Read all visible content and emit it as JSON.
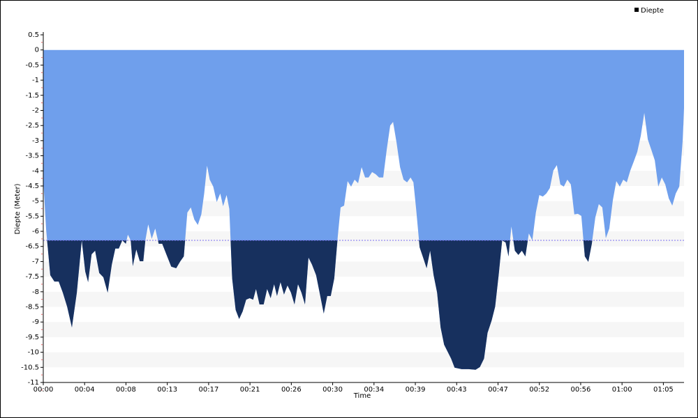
{
  "chart_data": {
    "type": "area",
    "xlabel": "Time",
    "ylabel": "Diepte (Meter)",
    "x": [
      0,
      18,
      44,
      70,
      97,
      123,
      150,
      180,
      211,
      242,
      264,
      282,
      304,
      326,
      352,
      378,
      405,
      431,
      453,
      475,
      497,
      519,
      532,
      550,
      563,
      585,
      607,
      629,
      642,
      660,
      682,
      704,
      726,
      748,
      774,
      805,
      836,
      862,
      884,
      906,
      928,
      950,
      972,
      994,
      1012,
      1030,
      1047,
      1069,
      1091,
      1113,
      1131,
      1153,
      1170,
      1188,
      1210,
      1232,
      1254,
      1276,
      1298,
      1320,
      1338,
      1360,
      1386,
      1408,
      1430,
      1452,
      1470,
      1492,
      1514,
      1536,
      1558,
      1580,
      1602,
      1624,
      1646,
      1668,
      1690,
      1716,
      1738,
      1764,
      1786,
      1808,
      1830,
      1852,
      1870,
      1892,
      1914,
      1936,
      1958,
      1980,
      2002,
      2024,
      2046,
      2068,
      2090,
      2112,
      2138,
      2160,
      2182,
      2200,
      2222,
      2244,
      2266,
      2288,
      2310,
      2328,
      2345,
      2367,
      2389,
      2411,
      2433,
      2455,
      2477,
      2499,
      2521,
      2543,
      2565,
      2587,
      2631,
      2675,
      2719,
      2746,
      2772,
      2794,
      2820,
      2842,
      2864,
      2886,
      2908,
      2926,
      2944,
      2966,
      2988,
      3010,
      3032,
      3054,
      3076,
      3098,
      3120,
      3142,
      3164,
      3186,
      3208,
      3230,
      3252,
      3274,
      3296,
      3318,
      3340,
      3362,
      3384,
      3406,
      3428,
      3450,
      3472,
      3494,
      3516,
      3538,
      3560,
      3582,
      3604,
      3626,
      3648,
      3670,
      3692,
      3714,
      3736,
      3758,
      3780,
      3802,
      3824,
      3846,
      3868,
      3890,
      3912,
      3934,
      3956,
      3978,
      4000,
      4022,
      4030
    ],
    "series": [
      {
        "name": "Diepte",
        "color": "#6f9fec",
        "below_color": "#17305e",
        "values": [
          -4.29,
          -5.95,
          -7.45,
          -7.66,
          -7.66,
          -8.03,
          -8.49,
          -9.18,
          -8.03,
          -6.3,
          -7.33,
          -7.68,
          -6.76,
          -6.64,
          -7.38,
          -7.52,
          -8.03,
          -7.1,
          -6.57,
          -6.57,
          -6.3,
          -6.41,
          -6.11,
          -6.3,
          -7.15,
          -6.6,
          -6.99,
          -6.99,
          -6.3,
          -5.77,
          -6.25,
          -5.91,
          -6.41,
          -6.41,
          -6.76,
          -7.17,
          -7.22,
          -6.99,
          -6.83,
          -5.38,
          -5.21,
          -5.61,
          -5.79,
          -5.44,
          -4.75,
          -3.83,
          -4.29,
          -4.52,
          -5.03,
          -4.75,
          -5.17,
          -4.8,
          -5.26,
          -7.56,
          -8.6,
          -8.9,
          -8.65,
          -8.26,
          -8.21,
          -8.26,
          -7.91,
          -8.42,
          -8.42,
          -7.91,
          -8.21,
          -7.75,
          -8.14,
          -7.68,
          -8.09,
          -7.79,
          -8.03,
          -8.42,
          -7.75,
          -8.03,
          -8.42,
          -6.87,
          -7.1,
          -7.45,
          -8.03,
          -8.72,
          -8.14,
          -8.14,
          -7.56,
          -6.18,
          -5.21,
          -5.15,
          -4.34,
          -4.52,
          -4.29,
          -4.41,
          -3.88,
          -4.22,
          -4.22,
          -4.04,
          -4.11,
          -4.22,
          -4.22,
          -3.3,
          -2.5,
          -2.38,
          -3.07,
          -3.88,
          -4.29,
          -4.38,
          -4.22,
          -4.38,
          -5.26,
          -6.53,
          -6.87,
          -7.22,
          -6.64,
          -7.45,
          -8.03,
          -9.18,
          -9.75,
          -9.98,
          -10.21,
          -10.51,
          -10.56,
          -10.56,
          -10.58,
          -10.49,
          -10.21,
          -9.36,
          -8.95,
          -8.49,
          -7.45,
          -6.3,
          -6.37,
          -6.83,
          -5.84,
          -6.64,
          -6.78,
          -6.64,
          -6.83,
          -6.07,
          -6.3,
          -5.38,
          -4.8,
          -4.85,
          -4.75,
          -4.57,
          -3.99,
          -3.81,
          -4.45,
          -4.52,
          -4.29,
          -4.45,
          -5.44,
          -5.42,
          -5.49,
          -6.83,
          -7.01,
          -6.41,
          -5.54,
          -5.1,
          -5.21,
          -6.23,
          -5.91,
          -4.98,
          -4.34,
          -4.52,
          -4.29,
          -4.38,
          -3.99,
          -3.69,
          -3.37,
          -2.84,
          -2.08,
          -2.96,
          -3.3,
          -3.65,
          -4.52,
          -4.22,
          -4.45,
          -4.91,
          -5.15,
          -4.75,
          -4.52,
          -2.96,
          -1.92
        ]
      }
    ],
    "reference_line": -6.3,
    "reference_color": "#7a6ff0",
    "xlim": [
      0,
      4030
    ],
    "xticks": [
      {
        "value": 0,
        "label": "00:00"
      },
      {
        "value": 260,
        "label": "00:04"
      },
      {
        "value": 520,
        "label": "00:08"
      },
      {
        "value": 780,
        "label": "00:13"
      },
      {
        "value": 1040,
        "label": "00:17"
      },
      {
        "value": 1300,
        "label": "00:21"
      },
      {
        "value": 1560,
        "label": "00:26"
      },
      {
        "value": 1820,
        "label": "00:30"
      },
      {
        "value": 2080,
        "label": "00:34"
      },
      {
        "value": 2340,
        "label": "00:39"
      },
      {
        "value": 2600,
        "label": "00:43"
      },
      {
        "value": 2860,
        "label": "00:47"
      },
      {
        "value": 3120,
        "label": "00:52"
      },
      {
        "value": 3380,
        "label": "00:56"
      },
      {
        "value": 3640,
        "label": "01:00"
      },
      {
        "value": 3900,
        "label": "01:05"
      }
    ],
    "ylim": [
      -11,
      0.5
    ],
    "yticks": [
      0.5,
      0,
      -0.5,
      -1,
      -1.5,
      -2,
      -2.5,
      -3,
      -3.5,
      -4,
      -4.5,
      -5,
      -5.5,
      -6,
      -6.5,
      -7,
      -7.5,
      -8,
      -8.5,
      -9,
      -9.5,
      -10,
      -10.5,
      -11
    ],
    "stripes": true,
    "legend": "top-right"
  }
}
